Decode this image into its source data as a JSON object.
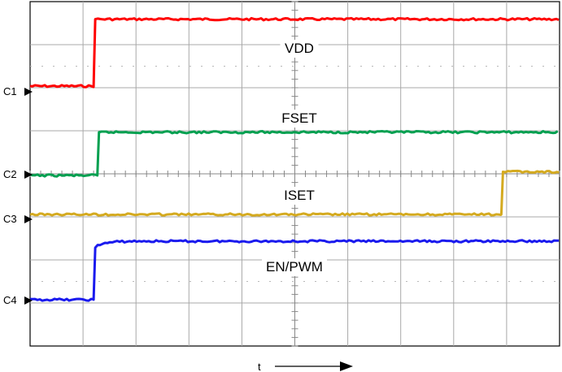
{
  "chart_data": {
    "type": "line",
    "xlabel": "t",
    "x": [
      0,
      0.8,
      1.2,
      9.0,
      10
    ],
    "grid": true,
    "divisions": {
      "x": 10,
      "y": 8
    },
    "series": [
      {
        "name": "VDD",
        "channel": "C1",
        "color": "#ff0000",
        "low": 0.0,
        "high": 1.35,
        "rise_at": 1.2
      },
      {
        "name": "FSET",
        "channel": "C2",
        "color": "#00a050",
        "low": 0.0,
        "high": 0.75,
        "rise_at": 1.27
      },
      {
        "name": "ISET",
        "channel": "C3",
        "color": "#d4aa20",
        "low": 0.0,
        "high": 0.75,
        "rise_at": 8.9
      },
      {
        "name": "EN/PWM",
        "channel": "C4",
        "color": "#1a1aee",
        "low": 0.0,
        "high": 1.0,
        "rise_at": 1.2
      }
    ]
  }
}
